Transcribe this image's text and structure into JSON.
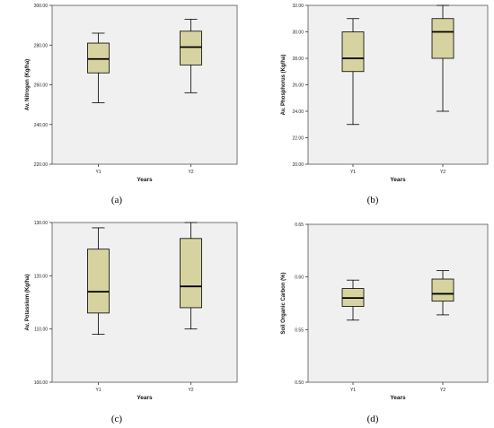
{
  "colors": {
    "plot_background": "#f0f0f0",
    "box_fill": "#d6d3a1",
    "box_stroke": "#000000",
    "median": "#000000"
  },
  "chart_data": [
    {
      "type": "box",
      "panel": "(a)",
      "xlabel": "Years",
      "ylabel": "Av. Nitrogen (Kg/ha)",
      "categories": [
        "Y1",
        "Y2"
      ],
      "ylim": [
        220,
        300
      ],
      "yticks": [
        "220.00",
        "240.00",
        "260.00",
        "280.00",
        "300.00"
      ],
      "ytick_values": [
        220,
        240,
        260,
        280,
        300
      ],
      "boxes": [
        {
          "min": 251,
          "q1": 266,
          "median": 273,
          "q3": 281,
          "max": 286
        },
        {
          "min": 256,
          "q1": 270,
          "median": 279,
          "q3": 287,
          "max": 293
        }
      ]
    },
    {
      "type": "box",
      "panel": "(b)",
      "xlabel": "Years",
      "ylabel": "Av. Phosphorus (Kg/ha)",
      "categories": [
        "Y1",
        "Y2"
      ],
      "ylim": [
        20,
        32
      ],
      "yticks": [
        "20.00",
        "22.00",
        "24.00",
        "26.00",
        "28.00",
        "30.00",
        "32.00"
      ],
      "ytick_values": [
        20,
        22,
        24,
        26,
        28,
        30,
        32
      ],
      "boxes": [
        {
          "min": 23,
          "q1": 27,
          "median": 28,
          "q3": 30,
          "max": 31
        },
        {
          "min": 24,
          "q1": 28,
          "median": 30,
          "q3": 31,
          "max": 32
        }
      ]
    },
    {
      "type": "box",
      "panel": "(c)",
      "xlabel": "Years",
      "ylabel": "Av. Potassium (Kg/ha)",
      "categories": [
        "Y1",
        "Y2"
      ],
      "ylim": [
        100,
        130
      ],
      "yticks": [
        "100.00",
        "110.00",
        "120.00",
        "130.00"
      ],
      "ytick_values": [
        100,
        110,
        120,
        130
      ],
      "boxes": [
        {
          "min": 109,
          "q1": 113,
          "median": 117,
          "q3": 125,
          "max": 129
        },
        {
          "min": 110,
          "q1": 114,
          "median": 118,
          "q3": 127,
          "max": 130
        }
      ]
    },
    {
      "type": "box",
      "panel": "(d)",
      "xlabel": "Years",
      "ylabel": "Soil Organic Carbon (%)",
      "categories": [
        "Y1",
        "Y2"
      ],
      "ylim": [
        0.5,
        0.65
      ],
      "yticks": [
        "0.50",
        "0.55",
        "0.60",
        "0.65"
      ],
      "ytick_values": [
        0.5,
        0.55,
        0.6,
        0.65
      ],
      "boxes": [
        {
          "min": 0.559,
          "q1": 0.572,
          "median": 0.58,
          "q3": 0.589,
          "max": 0.597
        },
        {
          "min": 0.564,
          "q1": 0.577,
          "median": 0.584,
          "q3": 0.598,
          "max": 0.606
        }
      ]
    }
  ]
}
